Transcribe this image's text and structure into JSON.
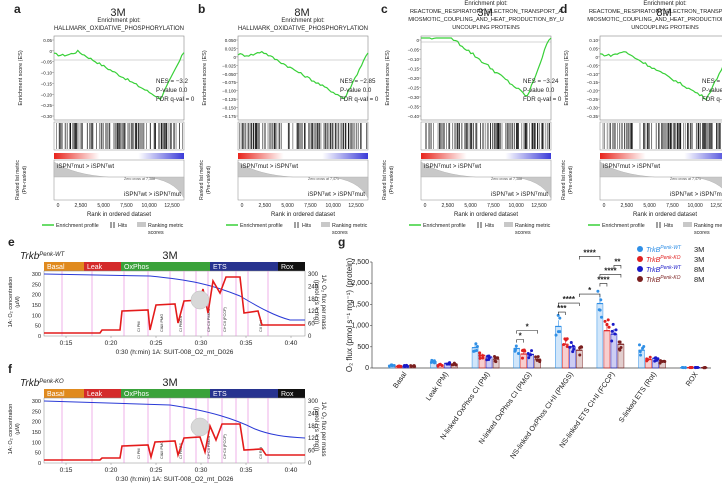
{
  "panel_letters": [
    "a",
    "b",
    "c",
    "d",
    "e",
    "f",
    "g"
  ],
  "gsea": {
    "ylabel": "Enrichment score (ES)",
    "rank_ylabel_1": "Ranked list metric",
    "rank_ylabel_2": "(Pre-ranked)",
    "xlabel": "Rank in ordered dataset",
    "legend": [
      "Enrichment profile",
      "Hits",
      "Ranking metric",
      "scores"
    ],
    "enrichment_title": "Enrichment plot:",
    "label_top": "iSPNᵀmut > iSPNᵀwt",
    "label_bottom": "iSPNᵀwt > iSPNᵀmut",
    "pvalue": "P-value 0.0",
    "fdr": "FDR q-val = 0",
    "xticks": [
      "0",
      "2,500",
      "5,000",
      "7,500",
      "10,000",
      "12,500"
    ],
    "panels": [
      {
        "letter": "a",
        "age": "3M",
        "title": [
          "HALLMARK_OXIDATIVE_PHOSPHORYLATION"
        ],
        "nes": "NES = −3.2",
        "zero_cross": "Zero cross at 7,388",
        "yticks": [
          "0.05",
          "0",
          "−0.05",
          "−0.10",
          "−0.15",
          "−0.20",
          "−0.25",
          "−0.30"
        ]
      },
      {
        "letter": "b",
        "age": "8M",
        "title": [
          "HALLMARK_OXIDATIVE_PHOSPHORYLATION"
        ],
        "nes": "NES = −2.85",
        "zero_cross": "Zero cross at 7,471",
        "yticks": [
          "0.050",
          "0.025",
          "0",
          "−0.025",
          "−0.050",
          "−0.075",
          "−0.100",
          "−0.125",
          "−0.150",
          "−0.175"
        ]
      },
      {
        "letter": "c",
        "age": "3M",
        "title": [
          "REACTOME_RESPIRATORY_ELECTRON_TRANSPORT_A",
          "MIOSMOTIC_COUPLING_AND_HEAT_PRODUCTION_BY_U",
          "UNCOUPLING PROTEINS"
        ],
        "nes": "NES = −3.24",
        "zero_cross": "Zero cross at 7,388",
        "yticks": [
          "0",
          "−0.05",
          "−0.10",
          "−0.15",
          "−0.20",
          "−0.25",
          "−0.30",
          "−0.35",
          "−0.40"
        ]
      },
      {
        "letter": "d",
        "age": "8M",
        "title": [
          "REACTOME_RESPIRATORY_ELECTRON_TRANSPORT_A",
          "MIOSMOTIC_COUPLING_AND_HEAT_PRODUCTION_BY_U",
          "UNCOUPLING PROTEINS"
        ],
        "nes": "NES = −3.44",
        "zero_cross": "Zero cross at 7,471",
        "yticks": [
          "0.10",
          "0.05",
          "0",
          "−0.05",
          "−0.10",
          "−0.15",
          "−0.20",
          "−0.25",
          "−0.30",
          "−0.35"
        ]
      }
    ]
  },
  "oroboros": {
    "phases": [
      "Basal",
      "Leak",
      "OxPhos",
      "ETS",
      "Rox"
    ],
    "phase_colors": [
      "#e08a1e",
      "#d42a2a",
      "#3aa23a",
      "#27338f",
      "#111111"
    ],
    "xticks": [
      "0:15",
      "0:20",
      "0:25",
      "0:30",
      "0:35",
      "0:40"
    ],
    "xlabel": "0:30 (h:min) 1A: SUIT-008_O2_mt_D026",
    "ylabel_left": [
      "1A: O₂ concentration",
      "(μM)"
    ],
    "ylabel_right": [
      "1A: O₂ flux per mass",
      "(pmol / (s × mg))"
    ],
    "yticks_left": [
      "0",
      "50",
      "100",
      "150",
      "200",
      "250",
      "300"
    ],
    "yticks_right": [
      "0",
      "60",
      "120",
      "180",
      "240",
      "300"
    ],
    "markers": [
      "CI PM",
      "CI&II PMG",
      "CI PMGS",
      "CI+CII PMGS",
      "CI+CII (FCCP)",
      "CII Rot"
    ],
    "panels": [
      {
        "letter": "e",
        "gene": "Trkb",
        "superscript": "Penk-WT",
        "age": "3M"
      },
      {
        "letter": "f",
        "gene": "Trkb",
        "superscript": "Penk-KO",
        "age": "3M"
      }
    ]
  },
  "chart_data": {
    "type": "bar",
    "title": "",
    "xlabel": "",
    "ylabel": "O₂ flux (pmol s⁻¹ mg⁻¹) (protein)",
    "ylim": [
      0,
      2500
    ],
    "yticks": [
      "0",
      "500",
      "1,000",
      "1,500",
      "2,000",
      "2,500"
    ],
    "categories": [
      "Basal",
      "Leak (PM)",
      "N-linked OxPhos CI (PM)",
      "N-linked OxPhos CI (PMG)",
      "NS-linked OxPhos CI+II (PMGS)",
      "NS-linked ETS CI+II (FCCP)",
      "S-linked ETS (Rot)",
      "ROX"
    ],
    "series": [
      {
        "name": "TrkB Penk-WT 3M",
        "gene": "TrkB",
        "sup": "Penk-WT",
        "age": "3M",
        "color": "#2f8fe6",
        "values": [
          60,
          150,
          480,
          460,
          980,
          1520,
          420,
          10
        ]
      },
      {
        "name": "TrkB Penk-KO 3M",
        "gene": "TrkB",
        "sup": "Penk-KO",
        "age": "3M",
        "color": "#e02020",
        "values": [
          40,
          70,
          300,
          330,
          560,
          880,
          200,
          10
        ]
      },
      {
        "name": "TrkB Penk-WT 8M",
        "gene": "TrkB",
        "sup": "Penk-WT",
        "age": "8M",
        "color": "#1a1ac8",
        "values": [
          50,
          110,
          260,
          320,
          500,
          800,
          230,
          10
        ]
      },
      {
        "name": "TrkB Penk-KO 8M",
        "gene": "TrkB",
        "sup": "Penk-KO",
        "age": "8M",
        "color": "#7a1f1f",
        "values": [
          45,
          90,
          210,
          210,
          420,
          560,
          150,
          10
        ]
      }
    ],
    "significance": [
      {
        "category": 3,
        "from": 0,
        "to": 1,
        "label": "*"
      },
      {
        "category": 3,
        "from": 0,
        "to": 3,
        "label": "*"
      },
      {
        "category": 4,
        "from": 0,
        "to": 1,
        "label": "***"
      },
      {
        "category": 4,
        "from": 0,
        "to": 3,
        "label": "****"
      },
      {
        "category": 4,
        "from": 3,
        "to": -1,
        "label": "*"
      },
      {
        "category": 5,
        "from": 0,
        "to": 1,
        "label": "****"
      },
      {
        "category": 5,
        "from": 0,
        "to": 3,
        "label": "****"
      },
      {
        "category": 5,
        "from": 2,
        "to": 3,
        "label": "**"
      },
      {
        "category": 5,
        "from": -1,
        "to": 0,
        "label": "****"
      }
    ]
  }
}
